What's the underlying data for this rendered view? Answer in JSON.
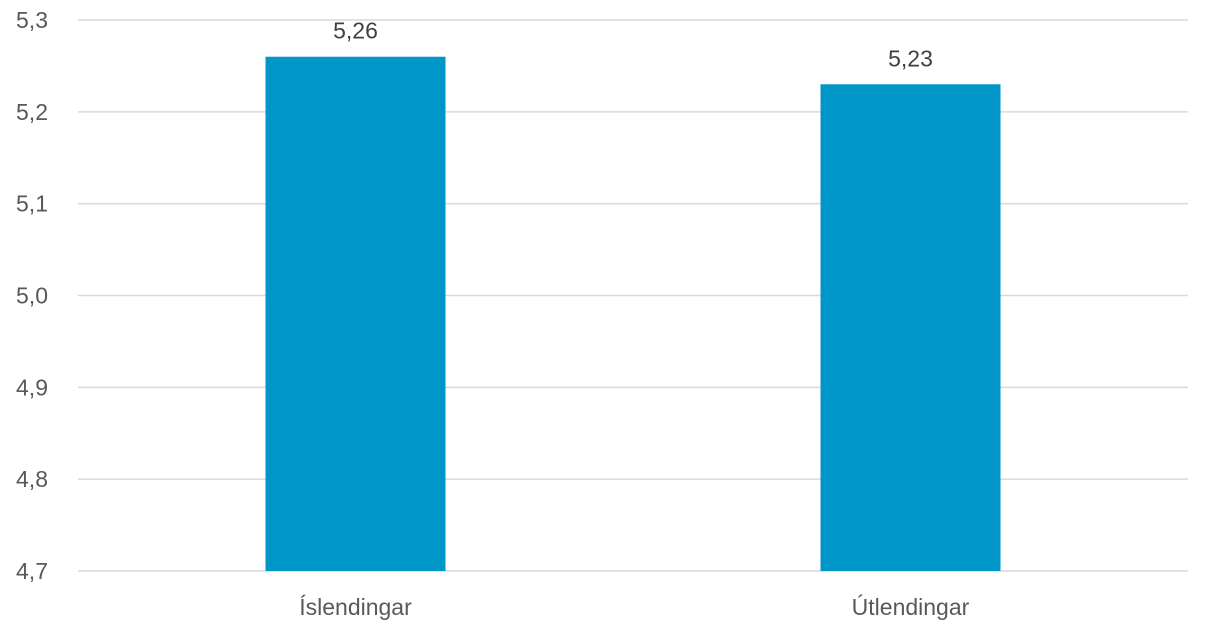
{
  "chart_data": {
    "type": "bar",
    "categories": [
      "Íslendingar",
      "Útlendingar"
    ],
    "values": [
      5.26,
      5.23
    ],
    "value_labels": [
      "5,26",
      "5,23"
    ],
    "ylim": [
      4.7,
      5.3
    ],
    "y_ticks": [
      4.7,
      4.8,
      4.9,
      5.0,
      5.1,
      5.2,
      5.3
    ],
    "y_tick_labels": [
      "4,7",
      "4,8",
      "4,9",
      "5,0",
      "5,1",
      "5,2",
      "5,3"
    ],
    "grid": true,
    "legend": "none",
    "bar_color": "#0096C8",
    "grid_color": "#D9D9D9"
  }
}
